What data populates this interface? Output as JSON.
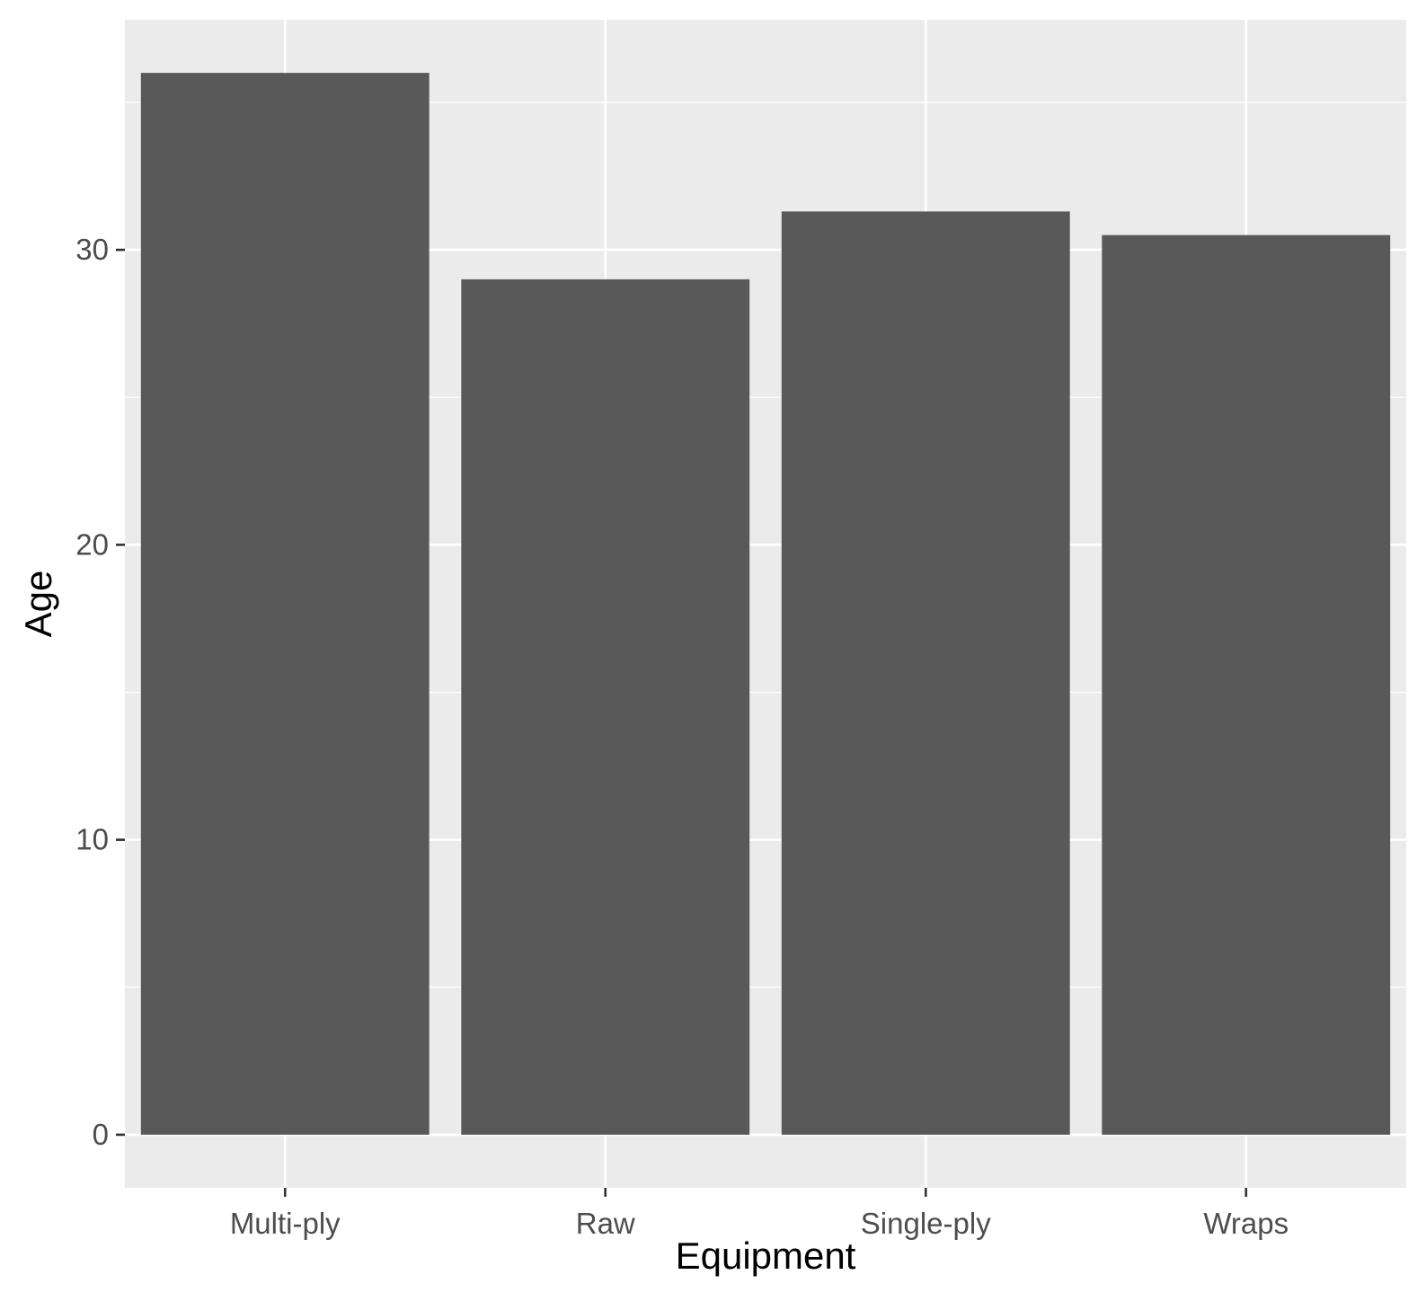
{
  "chart_data": {
    "type": "bar",
    "title": "",
    "xlabel": "Equipment",
    "ylabel": "Age",
    "categories": [
      "Multi-ply",
      "Raw",
      "Single-ply",
      "Wraps"
    ],
    "values": [
      36.0,
      29.0,
      31.3,
      30.5
    ],
    "ylim": [
      -1.8,
      37.8
    ],
    "yticks": [
      0,
      10,
      20,
      30
    ],
    "ytick_labels": [
      "0",
      "10",
      "20",
      "30"
    ],
    "y_minor_ticks": [
      5,
      15,
      25,
      35
    ],
    "grid": true,
    "legend": "none",
    "colors": {
      "panel_background": "#ebebeb",
      "grid": "#ffffff",
      "bar_fill": "#595959",
      "tick": "#333333",
      "tick_label": "#4d4d4d",
      "axis_title": "#000000"
    }
  }
}
